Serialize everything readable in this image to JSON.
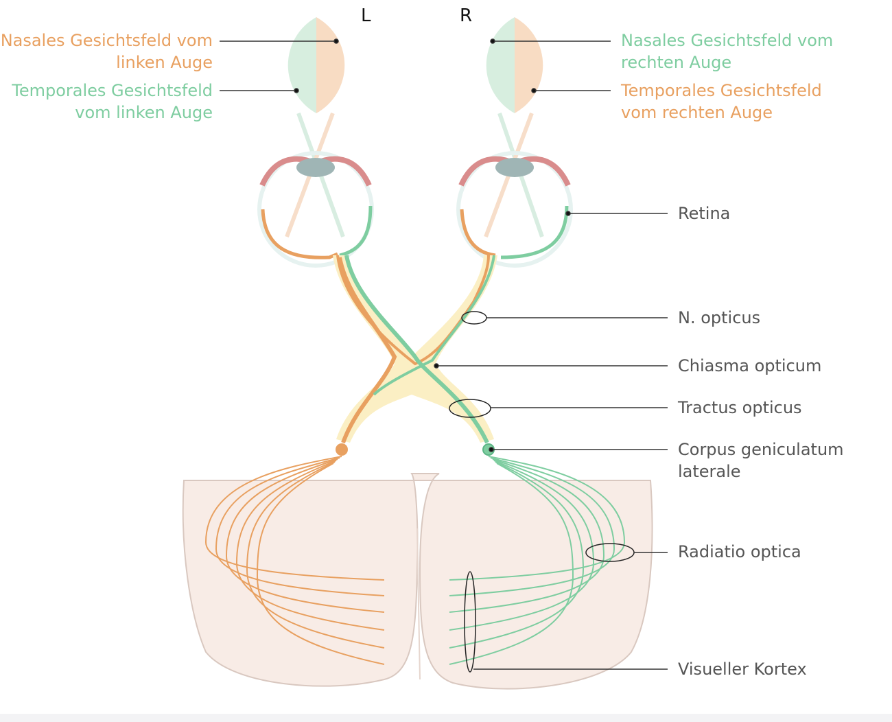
{
  "side_labels": {
    "left": "L",
    "right": "R"
  },
  "visual_fields": {
    "left_nasal": [
      "Nasales Gesichtsfeld vom",
      "linken Auge"
    ],
    "left_temporal": [
      "Temporales Gesichtsfeld",
      "vom linken Auge"
    ],
    "right_nasal": [
      "Nasales Gesichtsfeld vom",
      "rechten Auge"
    ],
    "right_temporal": [
      "Temporales Gesichtsfeld",
      "vom rechten Auge"
    ]
  },
  "structures": {
    "retina": "Retina",
    "n_opticus": "N. opticus",
    "chiasma": "Chiasma opticum",
    "tractus": "Tractus opticus",
    "cgl": [
      "Corpus geniculatum",
      "laterale"
    ],
    "radiatio": "Radiatio optica",
    "kortex": "Visueller Kortex"
  },
  "colors": {
    "orange": "#e8a060",
    "green": "#7ecda0",
    "field_orange": "#f8dcc3",
    "field_green": "#d7eedf",
    "pathway_fill": "#fbefc4",
    "cortex_fill": "#f8ece6",
    "leader": "#333333"
  }
}
